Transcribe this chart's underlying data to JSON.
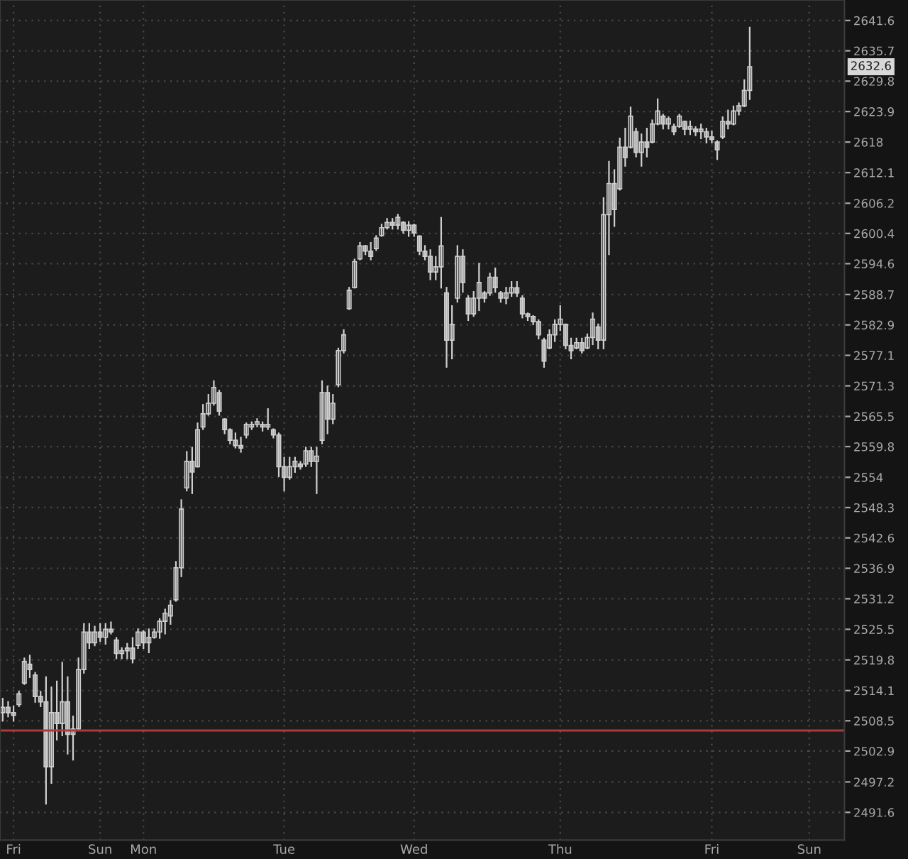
{
  "chart_data": {
    "type": "candlestick",
    "categories": [
      null,
      null,
      "Fri",
      null,
      null,
      null,
      null,
      null,
      null,
      null,
      null,
      null,
      null,
      null,
      null,
      null,
      null,
      null,
      "Sun",
      null,
      null,
      null,
      null,
      null,
      null,
      null,
      "Mon",
      null,
      null,
      null,
      null,
      null,
      null,
      null,
      null,
      null,
      null,
      null,
      null,
      null,
      null,
      null,
      null,
      null,
      null,
      null,
      null,
      null,
      null,
      null,
      null,
      null,
      "Tue",
      null,
      null,
      null,
      null,
      null,
      null,
      null,
      null,
      null,
      null,
      null,
      null,
      null,
      null,
      null,
      null,
      null,
      null,
      null,
      null,
      null,
      null,
      null,
      "Wed",
      null,
      null,
      null,
      null,
      null,
      null,
      null,
      null,
      null,
      null,
      null,
      null,
      null,
      null,
      null,
      null,
      null,
      null,
      null,
      null,
      null,
      null,
      null,
      null,
      null,
      null,
      "Thu",
      null,
      null,
      null,
      null,
      null,
      null,
      null,
      null,
      null,
      null,
      null,
      null,
      null,
      null,
      null,
      null,
      null,
      null,
      null,
      null,
      null,
      null,
      null,
      null,
      null,
      null,
      null,
      "Fri",
      null,
      null,
      null,
      null,
      null,
      null,
      null,
      null,
      null,
      null,
      null,
      null,
      null,
      null,
      null,
      null,
      null,
      "Sun",
      null,
      null,
      null,
      null,
      null,
      null
    ],
    "ohlc": [
      [
        2510,
        2512.6,
        2508.5,
        2511
      ],
      [
        2511,
        2512.0,
        2509.3,
        2510
      ],
      [
        2510,
        2511.2,
        2508.5,
        2509.5
      ],
      [
        2511.5,
        2513.9,
        2511.2,
        2513.5
      ],
      [
        2515.5,
        2520.1,
        2515.3,
        2519.5
      ],
      [
        2519,
        2520.6,
        2516.6,
        2518
      ],
      [
        2517,
        2517.4,
        2512.0,
        2513
      ],
      [
        2513,
        2513.9,
        2511.2,
        2512
      ],
      [
        2512,
        2516.6,
        2493.2,
        2500
      ],
      [
        2500,
        2514.7,
        2497.0,
        2510
      ],
      [
        2510,
        2515.8,
        2505.0,
        2508
      ],
      [
        2508,
        2519.3,
        2505.8,
        2512
      ],
      [
        2512,
        2516.6,
        2502.4,
        2506
      ],
      [
        2506,
        2509.3,
        2501.3,
        2507
      ],
      [
        2507,
        2520.1,
        2506.7,
        2518
      ],
      [
        2518,
        2526.5,
        2517.4,
        2525
      ],
      [
        2525,
        2526.5,
        2522.0,
        2523
      ],
      [
        2523,
        2526.0,
        2522.5,
        2525
      ],
      [
        2525,
        2526.5,
        2523.3,
        2524
      ],
      [
        2524,
        2526.5,
        2522.8,
        2525.5
      ],
      [
        2525.5,
        2526.8,
        2524.7,
        2525
      ],
      [
        2523.5,
        2523.9,
        2520.1,
        2521
      ],
      [
        2521,
        2522.0,
        2520.1,
        2521.5
      ],
      [
        2521.5,
        2522.8,
        2520.1,
        2522
      ],
      [
        2522,
        2523.9,
        2519.3,
        2520
      ],
      [
        2522.5,
        2525.5,
        2522.0,
        2525
      ],
      [
        2525,
        2525.2,
        2522.0,
        2523
      ],
      [
        2523,
        2525.5,
        2521.2,
        2524
      ],
      [
        2524,
        2525.5,
        2523.9,
        2525
      ],
      [
        2525,
        2527.4,
        2523.9,
        2527
      ],
      [
        2527,
        2529.2,
        2524.7,
        2528.5
      ],
      [
        2528,
        2530.8,
        2526.5,
        2530
      ],
      [
        2531,
        2538.1,
        2530.8,
        2537
      ],
      [
        2537,
        2549.7,
        2535.4,
        2548
      ],
      [
        2552,
        2558.8,
        2551.5,
        2557
      ],
      [
        2557,
        2559.6,
        2551.0,
        2555
      ],
      [
        2556,
        2564.2,
        2556,
        2563
      ],
      [
        2563.5,
        2567.7,
        2563.1,
        2566
      ],
      [
        2566,
        2569.6,
        2565.8,
        2568
      ],
      [
        2568,
        2572.2,
        2567.7,
        2571
      ],
      [
        2570,
        2570.4,
        2565.8,
        2566.5
      ],
      [
        2565,
        2565.0,
        2562.3,
        2563
      ],
      [
        2563,
        2563.1,
        2560.4,
        2561
      ],
      [
        2561,
        2562.3,
        2559.6,
        2560
      ],
      [
        2560,
        2561.5,
        2558.8,
        2559.5
      ],
      [
        2562,
        2564.2,
        2561.5,
        2564
      ],
      [
        2563.5,
        2564.4,
        2563.1,
        2564
      ],
      [
        2564,
        2565.0,
        2563.6,
        2564.5
      ],
      [
        2564,
        2564.4,
        2562.8,
        2563.5
      ],
      [
        2563.5,
        2566.9,
        2563.1,
        2564
      ],
      [
        2563,
        2563.1,
        2561.5,
        2562
      ],
      [
        2562,
        2562.3,
        2554.2,
        2556
      ],
      [
        2556,
        2557.7,
        2551.5,
        2554
      ],
      [
        2554,
        2557.7,
        2553.7,
        2556
      ],
      [
        2556,
        2557.7,
        2555.0,
        2557
      ],
      [
        2556.5,
        2556.9,
        2555.6,
        2556
      ],
      [
        2556.5,
        2559.6,
        2556.1,
        2559
      ],
      [
        2559,
        2559.6,
        2556.1,
        2557
      ],
      [
        2557,
        2559.6,
        2551.0,
        2558
      ],
      [
        2561,
        2572.2,
        2560.4,
        2570
      ],
      [
        2570,
        2571.2,
        2562.3,
        2565
      ],
      [
        2565,
        2569.6,
        2564.2,
        2568
      ],
      [
        2571.5,
        2578.4,
        2571.2,
        2578
      ],
      [
        2578,
        2581.9,
        2577.6,
        2581
      ],
      [
        2586,
        2590.0,
        2585.9,
        2589.5
      ],
      [
        2590,
        2595.4,
        2590.0,
        2595
      ],
      [
        2595.5,
        2598.6,
        2595.4,
        2598
      ],
      [
        2598,
        2598.0,
        2596.4,
        2597
      ],
      [
        2597,
        2598.6,
        2595.4,
        2596
      ],
      [
        2597.5,
        2599.9,
        2597.2,
        2599.5
      ],
      [
        2600,
        2602.1,
        2599.9,
        2601.5
      ],
      [
        2601.5,
        2603.2,
        2601.3,
        2602.5
      ],
      [
        2602.5,
        2603.2,
        2601.3,
        2602
      ],
      [
        2602,
        2604.0,
        2601.3,
        2603.5
      ],
      [
        2602.5,
        2602.6,
        2600.5,
        2601
      ],
      [
        2601,
        2602.6,
        2599.9,
        2602
      ],
      [
        2602,
        2602.1,
        2599.9,
        2600.5
      ],
      [
        2599.9,
        2599.9,
        2596.4,
        2597
      ],
      [
        2597,
        2598.0,
        2595.4,
        2596
      ],
      [
        2596,
        2597.2,
        2591.6,
        2593
      ],
      [
        2593,
        2595.9,
        2591.6,
        2594
      ],
      [
        2594,
        2603.4,
        2590.0,
        2598
      ],
      [
        2589,
        2590.0,
        2574.9,
        2580
      ],
      [
        2580,
        2586.5,
        2576.5,
        2583
      ],
      [
        2588,
        2598.0,
        2587.3,
        2596
      ],
      [
        2596,
        2597.2,
        2589.2,
        2591
      ],
      [
        2588,
        2588.4,
        2583.8,
        2585
      ],
      [
        2585,
        2589.2,
        2584.6,
        2588
      ],
      [
        2588,
        2594.6,
        2585.7,
        2591
      ],
      [
        2589,
        2589.2,
        2587.3,
        2588
      ],
      [
        2589,
        2592.7,
        2588.6,
        2592
      ],
      [
        2592,
        2593.7,
        2589.2,
        2590
      ],
      [
        2589,
        2589.2,
        2587.3,
        2588
      ],
      [
        2588,
        2590.0,
        2587.0,
        2589
      ],
      [
        2589,
        2591.1,
        2588.4,
        2590
      ],
      [
        2590,
        2591.1,
        2588.4,
        2589
      ],
      [
        2588,
        2588.4,
        2584.3,
        2585
      ],
      [
        2585,
        2585.1,
        2583.8,
        2584.5
      ],
      [
        2584.5,
        2584.6,
        2583.0,
        2583.5
      ],
      [
        2583.5,
        2583.8,
        2580.3,
        2581
      ],
      [
        2580,
        2580.3,
        2574.9,
        2576
      ],
      [
        2578.5,
        2581.9,
        2578.4,
        2581
      ],
      [
        2581,
        2583.8,
        2579.8,
        2583
      ],
      [
        2583,
        2586.5,
        2581.9,
        2584
      ],
      [
        2583,
        2583.0,
        2578.4,
        2579
      ],
      [
        2579,
        2580.3,
        2576.5,
        2578
      ],
      [
        2578.5,
        2580.3,
        2578.4,
        2579.5
      ],
      [
        2579.5,
        2580.3,
        2577.6,
        2578
      ],
      [
        2578.5,
        2581.1,
        2578.4,
        2580.5
      ],
      [
        2580.5,
        2585.1,
        2579.2,
        2584
      ],
      [
        2582.5,
        2583.0,
        2578.4,
        2580
      ],
      [
        2580,
        2607.2,
        2578.4,
        2604
      ],
      [
        2604,
        2614.2,
        2596.4,
        2610
      ],
      [
        2610,
        2612.6,
        2601.8,
        2605
      ],
      [
        2609,
        2618.7,
        2608.8,
        2617
      ],
      [
        2617,
        2620.6,
        2613.4,
        2615
      ],
      [
        2617,
        2624.7,
        2616.9,
        2623
      ],
      [
        2620,
        2620.6,
        2615.2,
        2616
      ],
      [
        2616,
        2619.5,
        2613.4,
        2618
      ],
      [
        2618,
        2620.6,
        2615.2,
        2617
      ],
      [
        2618,
        2622.2,
        2617.9,
        2621.5
      ],
      [
        2621.5,
        2626.3,
        2621.4,
        2624
      ],
      [
        2623,
        2623.3,
        2620.6,
        2621.5
      ],
      [
        2621.5,
        2622.8,
        2620.6,
        2622.5
      ],
      [
        2621,
        2621.4,
        2619.5,
        2620
      ],
      [
        2621,
        2623.3,
        2620.9,
        2623
      ],
      [
        2622,
        2622.0,
        2619.5,
        2620.5
      ],
      [
        2620.5,
        2622.0,
        2619.5,
        2621
      ],
      [
        2620.5,
        2620.9,
        2619.3,
        2620
      ],
      [
        2620,
        2621.4,
        2618.7,
        2620.5
      ],
      [
        2620,
        2620.6,
        2617.9,
        2619
      ],
      [
        2619,
        2620.1,
        2617.9,
        2618.5
      ],
      [
        2618,
        2618.2,
        2614.7,
        2616.5
      ],
      [
        2619,
        2622.8,
        2618.7,
        2622
      ],
      [
        2622,
        2624.1,
        2620.6,
        2621.5
      ],
      [
        2621.5,
        2624.9,
        2621.4,
        2624
      ],
      [
        2624,
        2625.5,
        2623.3,
        2625
      ],
      [
        2625,
        2630.0,
        2624.9,
        2628
      ],
      [
        2628,
        2640.2,
        2626.3,
        2632.6
      ],
      null,
      null,
      null,
      null,
      null,
      null,
      null,
      null,
      null,
      null,
      null,
      null,
      null,
      null,
      null,
      null,
      null
    ],
    "color": "#cfcfcf",
    "log": true,
    "ylim": [
      2486.5,
      2645.6
    ],
    "yticks": [
      2491.6,
      2497.2,
      2502.9,
      2508.5,
      2514.1,
      2519.8,
      2525.5,
      2531.2,
      2536.9,
      2542.6,
      2548.3,
      2554,
      2559.8,
      2565.5,
      2571.3,
      2577.1,
      2582.9,
      2588.7,
      2594.6,
      2600.4,
      2606.2,
      2612.1,
      2618,
      2623.9,
      2629.8,
      2635.7,
      2641.6
    ],
    "grid": true,
    "ref_lines": [
      {
        "axis": "y",
        "value": 2506.7,
        "color": "#b03a3a",
        "line_style": "solid"
      }
    ],
    "annotations": [
      {
        "text": "2632.6",
        "y": 2632.6
      }
    ]
  }
}
